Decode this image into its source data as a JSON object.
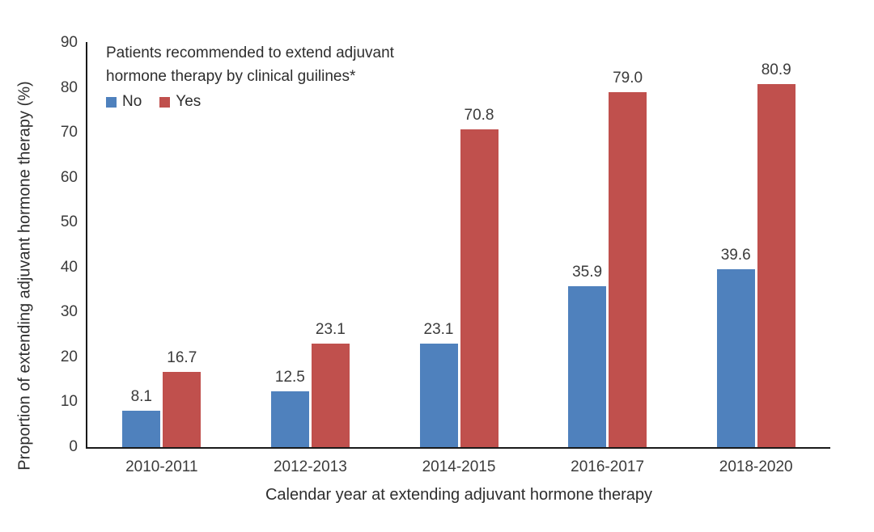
{
  "chart_data": {
    "type": "bar",
    "categories": [
      "2010-2011",
      "2012-2013",
      "2014-2015",
      "2016-2017",
      "2018-2020"
    ],
    "series": [
      {
        "name": "No",
        "color": "#4F81BD",
        "values": [
          8.1,
          12.5,
          23.1,
          35.9,
          39.6
        ]
      },
      {
        "name": "Yes",
        "color": "#C0504D",
        "values": [
          16.7,
          23.1,
          70.8,
          79.0,
          80.9
        ]
      }
    ],
    "title": "",
    "xlabel": "Calendar year at extending adjuvant hormone therapy",
    "ylabel": "Proportion of extending adjuvant hormone therapy (%)",
    "ylim": [
      0,
      90
    ],
    "y_ticks": [
      0,
      10,
      20,
      30,
      40,
      50,
      60,
      70,
      80,
      90
    ],
    "grid": false,
    "legend_position": "top-left",
    "legend_title_lines": [
      "Patients recommended to extend adjuvant",
      "hormone therapy by clinical guilines*"
    ],
    "value_label_decimals": 1
  }
}
